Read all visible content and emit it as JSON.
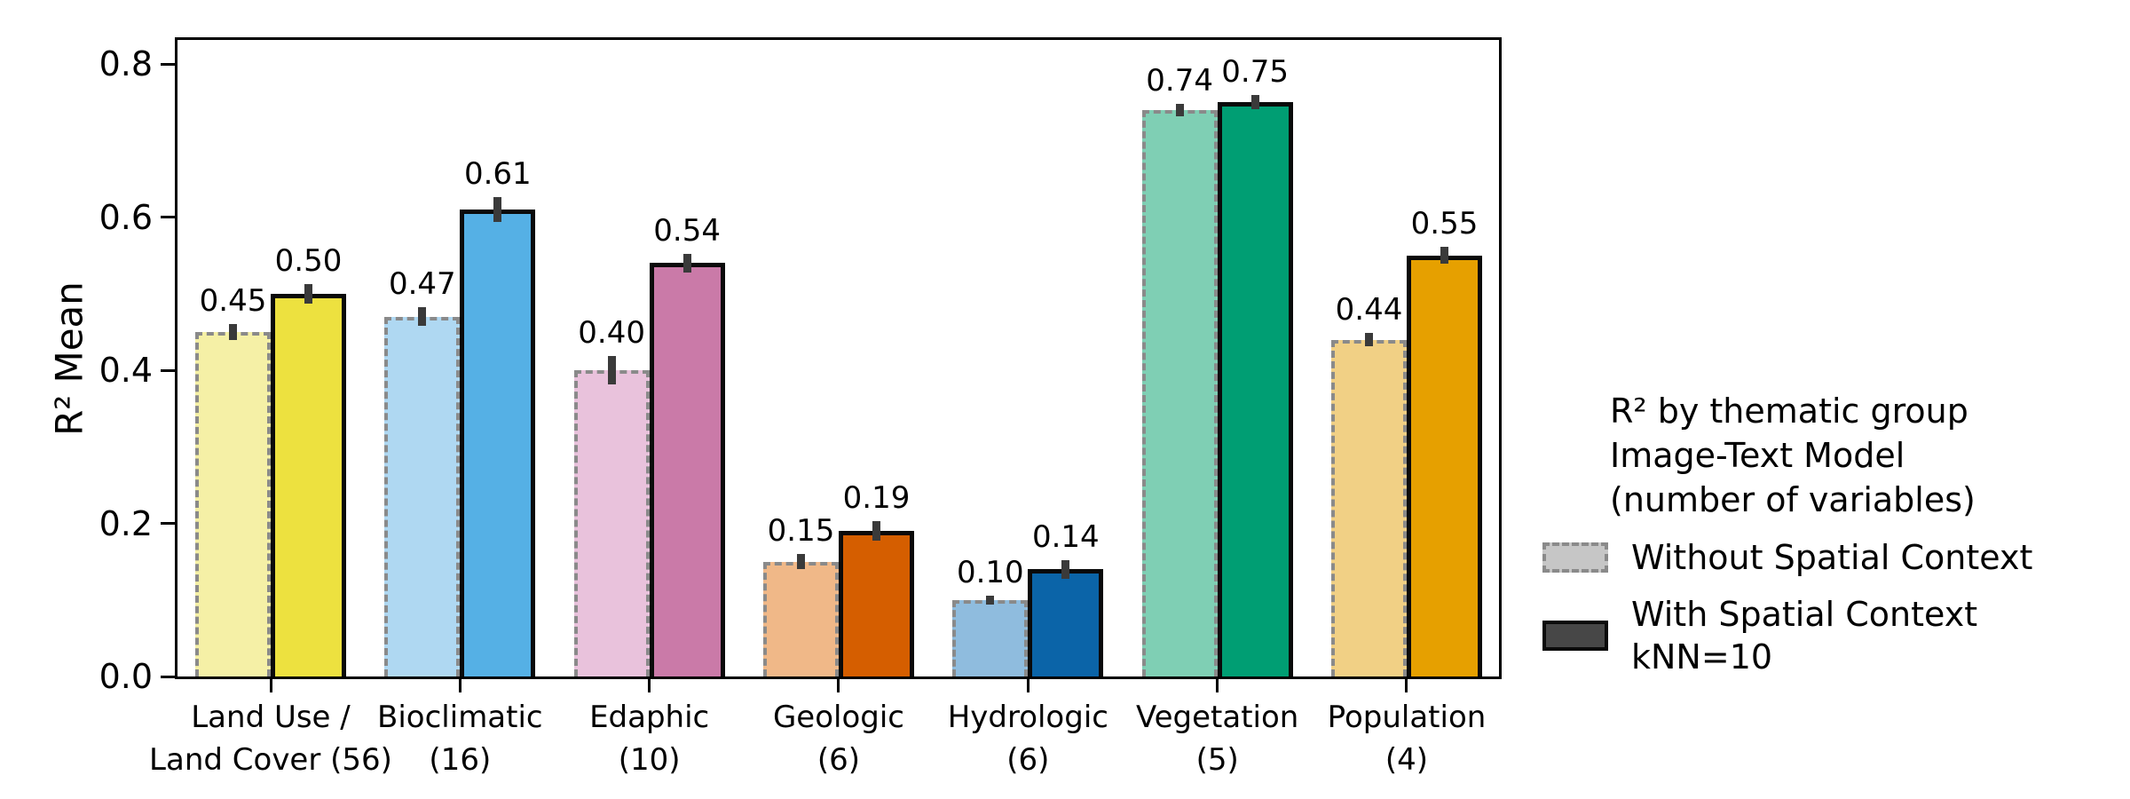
{
  "chart_data": {
    "type": "bar",
    "title": "",
    "ylabel": "R² Mean",
    "xlabel": "",
    "ylim": [
      0,
      0.83
    ],
    "grid": false,
    "legend_position": "right",
    "ytick_values": [
      0.0,
      0.2,
      0.4,
      0.6,
      0.8
    ],
    "ytick_labels": [
      "0.0",
      "0.2",
      "0.4",
      "0.6",
      "0.8"
    ],
    "categories": [
      "Land Use /\nLand Cover (56)",
      "Bioclimatic\n(16)",
      "Edaphic\n(10)",
      "Geologic\n(6)",
      "Hydrologic\n(6)",
      "Vegetation\n(5)",
      "Population\n(4)"
    ],
    "series": [
      {
        "name": "Without Spatial Context",
        "edge_style": "dashed",
        "edge_color": "#8a8a8a",
        "values": [
          0.45,
          0.47,
          0.4,
          0.15,
          0.1,
          0.74,
          0.44
        ],
        "errors": [
          0.01,
          0.012,
          0.018,
          0.01,
          0.006,
          0.008,
          0.009
        ],
        "fill_colors": [
          "#F5F0A6",
          "#AFD8F2",
          "#E9C2DC",
          "#F0B888",
          "#8FBCDE",
          "#7FCFB4",
          "#F1D085"
        ]
      },
      {
        "name": "With Spatial Context kNN=10",
        "edge_style": "solid",
        "edge_color": "#0a0a0a",
        "values": [
          0.5,
          0.61,
          0.54,
          0.19,
          0.14,
          0.75,
          0.55
        ],
        "errors": [
          0.013,
          0.016,
          0.012,
          0.013,
          0.012,
          0.009,
          0.011
        ],
        "fill_colors": [
          "#EDE13F",
          "#55B0E5",
          "#CA7AA8",
          "#D55E00",
          "#0B64A8",
          "#009E73",
          "#E6A000"
        ]
      }
    ],
    "value_label_decimals": 2,
    "error_bar_color": "#3a3a3a"
  },
  "legend": {
    "title_lines": [
      "R² by thematic group",
      "Image-Text Model",
      "(number of variables)"
    ],
    "items": [
      {
        "label_lines": [
          "Without Spatial Context"
        ],
        "swatch_fill": "#c6c6c6",
        "swatch_border_color": "#8a8a8a",
        "swatch_border_style": "dashed"
      },
      {
        "label_lines": [
          "With Spatial Context",
          "kNN=10"
        ],
        "swatch_fill": "#474747",
        "swatch_border_color": "#0a0a0a",
        "swatch_border_style": "solid"
      }
    ]
  },
  "colors": {
    "axes": "#000000",
    "background": "#ffffff",
    "error_bar": "#3a3a3a",
    "dashed_edge": "#8a8a8a"
  }
}
